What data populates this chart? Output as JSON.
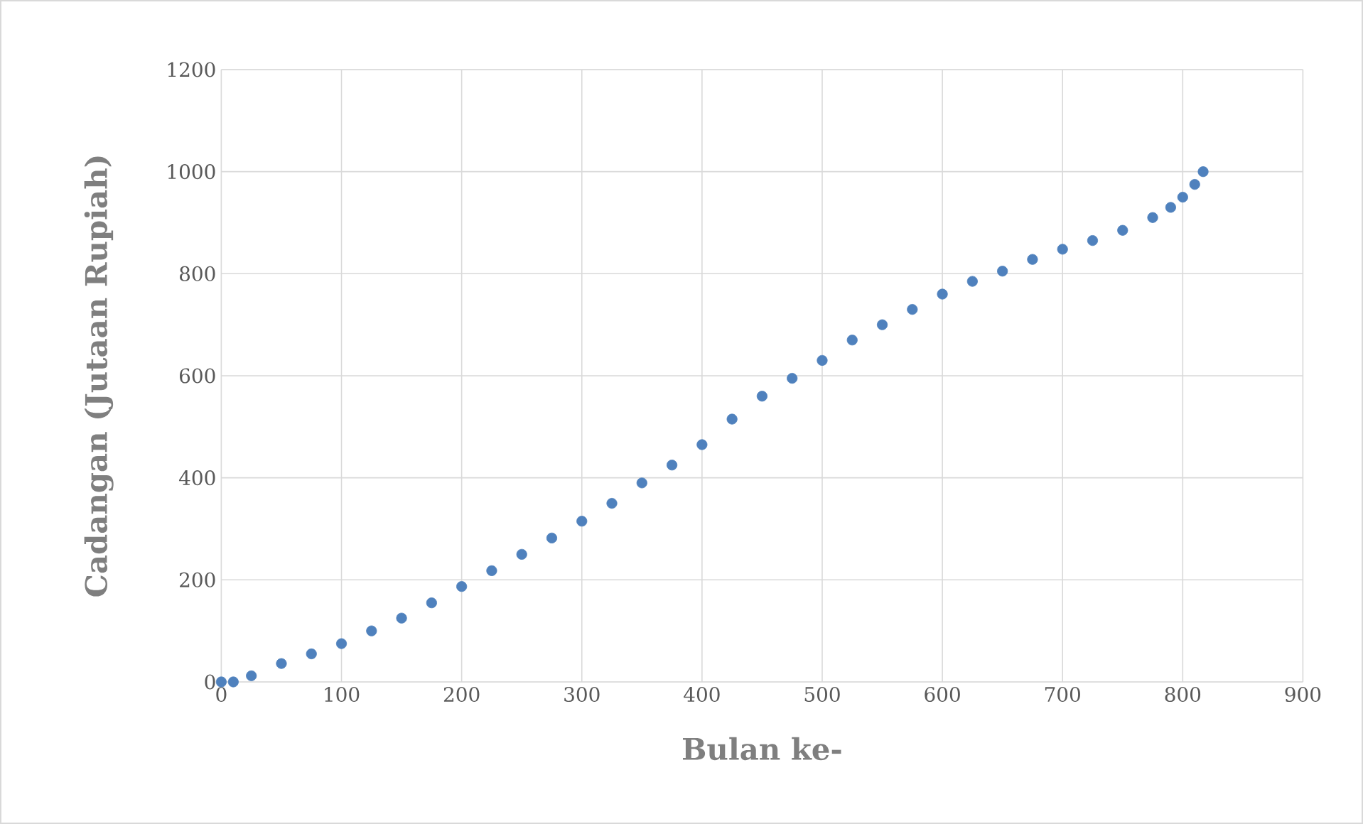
{
  "chart_data": {
    "type": "scatter",
    "xlabel": "Bulan ke-",
    "ylabel": "Cadangan (Jutaan Rupiah)",
    "marker": "circle",
    "grid": true,
    "xlim": [
      0,
      900
    ],
    "xticks": [
      0,
      100,
      200,
      300,
      400,
      500,
      600,
      700,
      800,
      900
    ],
    "ylim": [
      0,
      1200
    ],
    "yticks": [
      0,
      200,
      400,
      600,
      800,
      1000,
      1200
    ],
    "series": [
      {
        "color": "#4f81bd",
        "x": [
          0,
          10,
          25,
          50,
          75,
          100,
          125,
          150,
          175,
          200,
          225,
          250,
          275,
          300,
          325,
          350,
          375,
          400,
          425,
          450,
          475,
          500,
          525,
          550,
          575,
          600,
          625,
          650,
          675,
          700,
          725,
          750,
          775,
          790,
          800,
          810,
          817
        ],
        "values": [
          0,
          0,
          12,
          36,
          55,
          75,
          100,
          125,
          155,
          187,
          218,
          250,
          282,
          315,
          350,
          390,
          425,
          465,
          515,
          560,
          595,
          630,
          670,
          700,
          730,
          760,
          785,
          805,
          828,
          848,
          865,
          885,
          910,
          930,
          950,
          975,
          1000
        ]
      }
    ]
  }
}
